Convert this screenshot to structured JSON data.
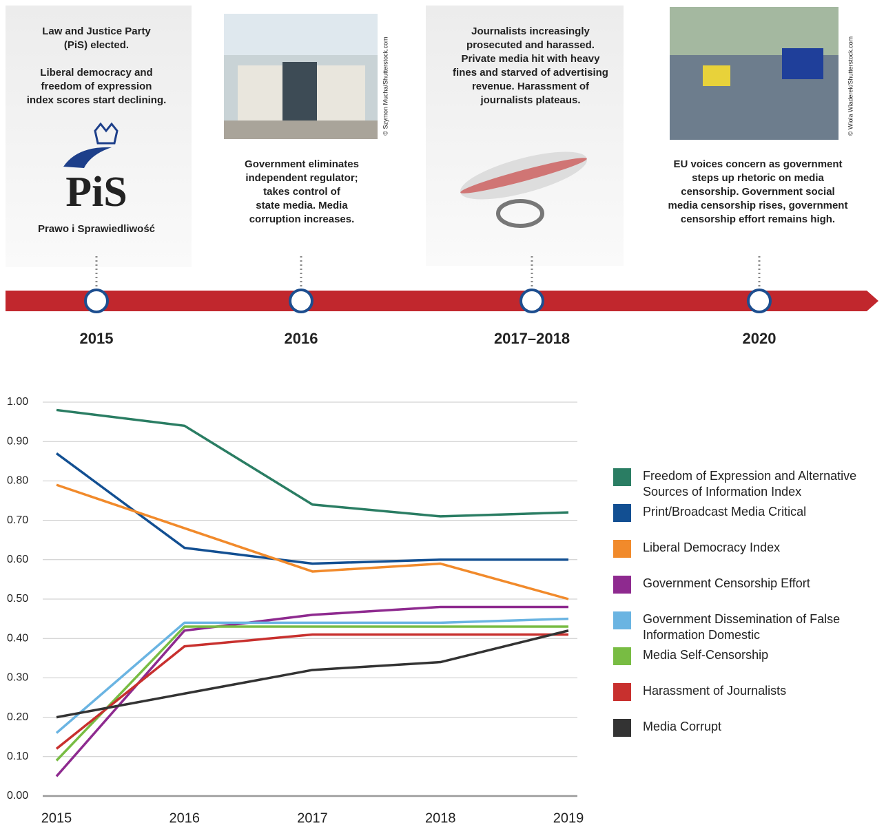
{
  "timeline": {
    "events": [
      {
        "year": "2015",
        "paragraphs": [
          [
            "Law and Justice Party",
            "(PiS) elected."
          ],
          [
            "Liberal democracy and",
            "freedom of expression",
            "index scores start declining."
          ]
        ]
      },
      {
        "year": "2016",
        "paragraphs": [
          [
            "Government eliminates",
            "independent regulator;",
            "takes control of",
            "state media. Media",
            "corruption increases."
          ]
        ],
        "credit": "© Szymon Mucha/Shutterstock.com"
      },
      {
        "year": "2017–2018",
        "paragraphs": [
          [
            "Journalists increasingly",
            "prosecuted and harassed.",
            "Private media hit with heavy",
            "fines and starved of advertising",
            "revenue. Harassment of",
            "journalists plateaus."
          ]
        ]
      },
      {
        "year": "2020",
        "paragraphs": [
          [
            "EU voices concern as government",
            "steps up rhetoric on media",
            "censorship. Government social",
            "media censorship rises, government",
            "censorship effort remains high."
          ]
        ],
        "credit": "© Wiola Wiaderek/Shutterstock.com"
      }
    ],
    "logo": {
      "mark": "PiS",
      "name": "Prawo i Sprawiedliwość"
    }
  },
  "chart_data": {
    "type": "line",
    "categories": [
      "2015",
      "2016",
      "2017",
      "2018",
      "2019"
    ],
    "ylim": [
      0,
      1
    ],
    "yticks": [
      {
        "value": 0,
        "label": "0.00"
      },
      {
        "value": 0.1,
        "label": "0.10"
      },
      {
        "value": 0.2,
        "label": "0.20"
      },
      {
        "value": 0.3,
        "label": "0.30"
      },
      {
        "value": 0.4,
        "label": "0.40"
      },
      {
        "value": 0.5,
        "label": "0.50"
      },
      {
        "value": 0.6,
        "label": "0.60"
      },
      {
        "value": 0.7,
        "label": "0.70"
      },
      {
        "value": 0.8,
        "label": "0.80"
      },
      {
        "value": 0.9,
        "label": "0.90"
      },
      {
        "value": 1,
        "label": "1.00"
      }
    ],
    "grid": true,
    "legend": "right",
    "series": [
      {
        "name": "Freedom of Expression and Alternative Sources of Information Index",
        "color": "#2a7d63",
        "values": [
          0.98,
          0.94,
          0.74,
          0.71,
          0.72
        ]
      },
      {
        "name": "Print/Broadcast Media Critical",
        "color": "#124f92",
        "values": [
          0.87,
          0.63,
          0.59,
          0.6,
          0.6
        ]
      },
      {
        "name": "Liberal Democracy Index",
        "color": "#f18a2b",
        "values": [
          0.79,
          0.68,
          0.57,
          0.59,
          0.5
        ]
      },
      {
        "name": "Government Censorship Effort",
        "color": "#8e2a8f",
        "values": [
          0.05,
          0.42,
          0.46,
          0.48,
          0.48
        ]
      },
      {
        "name": "Government Dissemination of False Information Domestic",
        "color": "#6ab4e2",
        "values": [
          0.16,
          0.44,
          0.44,
          0.44,
          0.45
        ]
      },
      {
        "name": "Media Self-Censorship",
        "color": "#78bc43",
        "values": [
          0.09,
          0.43,
          0.43,
          0.43,
          0.43
        ]
      },
      {
        "name": "Harassment of Journalists",
        "color": "#c8302e",
        "values": [
          0.12,
          0.38,
          0.41,
          0.41,
          0.41
        ]
      },
      {
        "name": "Media Corrupt",
        "color": "#333333",
        "values": [
          0.2,
          0.26,
          0.32,
          0.34,
          0.42
        ]
      }
    ]
  }
}
